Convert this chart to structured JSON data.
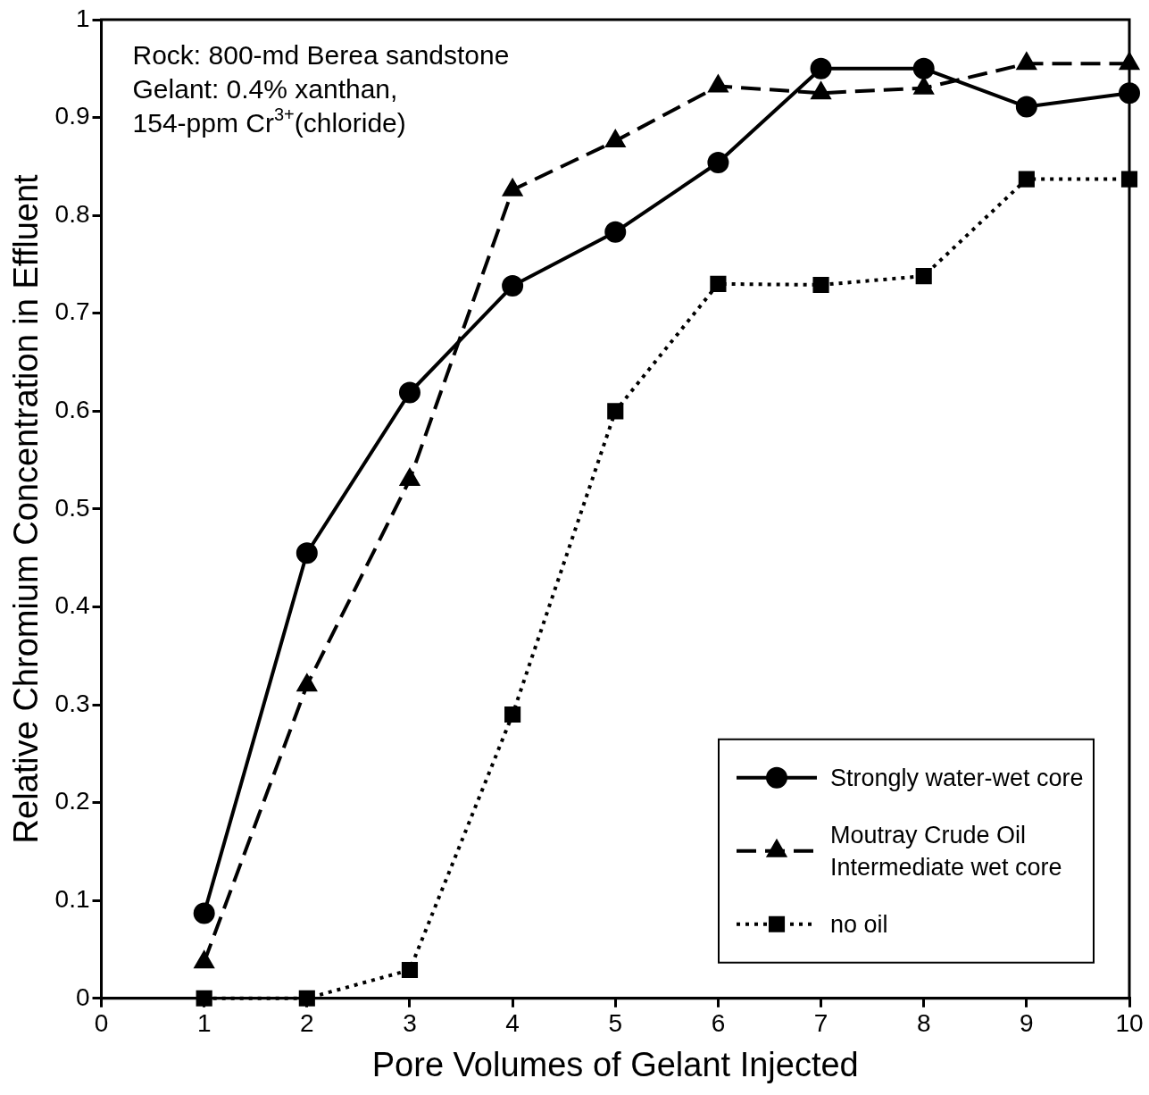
{
  "chart_data": {
    "type": "line",
    "xlabel": "Pore Volumes of Gelant Injected",
    "ylabel": "Relative Chromium Concentration in Effluent",
    "x": [
      1,
      2,
      3,
      4,
      5,
      6,
      7,
      8,
      9,
      10
    ],
    "series": [
      {
        "name": "Strongly water-wet core",
        "color": "#000000",
        "marker": "circle",
        "line_style": "solid",
        "values": [
          0.087,
          0.455,
          0.619,
          0.728,
          0.783,
          0.854,
          0.95,
          0.95,
          0.911,
          0.925
        ]
      },
      {
        "name": "Moutray Crude Oil\nIntermediate wet core",
        "color": "#000000",
        "marker": "triangle",
        "line_style": "dashed",
        "values": [
          0.037,
          0.32,
          0.53,
          0.826,
          0.876,
          0.932,
          0.925,
          0.93,
          0.955,
          0.955
        ]
      },
      {
        "name": "no oil",
        "color": "#000000",
        "marker": "square",
        "line_style": "dotted",
        "values": [
          0,
          0,
          0.029,
          0.29,
          0.6,
          0.73,
          0.729,
          0.738,
          0.837,
          0.837
        ]
      }
    ],
    "xlim": [
      0,
      10
    ],
    "xticks": [
      0,
      1,
      2,
      3,
      4,
      5,
      6,
      7,
      8,
      9,
      10
    ],
    "ylim": [
      0,
      1
    ],
    "yticks": [
      0,
      0.1,
      0.2,
      0.3,
      0.4,
      0.5,
      0.6,
      0.7,
      0.8,
      0.9,
      1
    ],
    "grid": false,
    "legend": "bottom right",
    "annotations": [
      "Rock: 800-md Berea sandstone",
      "Gelant: 0.4% xanthan,",
      "154-ppm Cr$^{3+}$(chloride)"
    ]
  }
}
